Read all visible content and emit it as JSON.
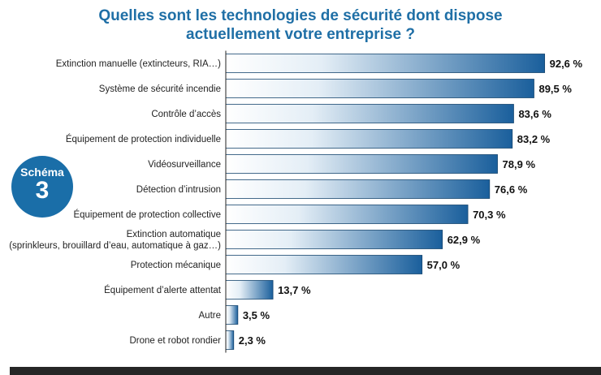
{
  "title": {
    "line1": "Quelles sont les technologies de sécurité dont dispose",
    "line2": "actuellement votre entreprise ?"
  },
  "badge": {
    "label": "Schéma",
    "number": "3"
  },
  "colors": {
    "title": "#1f6fa6",
    "badge": "#1a6ea8",
    "bar_dark": "#1a5f9c",
    "bar_light": "#ffffff",
    "footer": "#262626"
  },
  "chart_data": {
    "type": "bar",
    "orientation": "horizontal",
    "title": "Quelles sont les technologies de sécurité dont dispose actuellement votre entreprise ?",
    "unit": "%",
    "xlim": [
      0,
      100
    ],
    "categories": [
      [
        "Extinction manuelle (extincteurs, RIA…)"
      ],
      [
        "Système de sécurité incendie"
      ],
      [
        "Contrôle d’accès"
      ],
      [
        "Équipement de protection individuelle"
      ],
      [
        "Vidéosurveillance"
      ],
      [
        "Détection d’intrusion"
      ],
      [
        "Équipement de protection collective"
      ],
      [
        "Extinction automatique",
        "(sprinkleurs, brouillard d’eau, automatique à gaz…)"
      ],
      [
        "Protection mécanique"
      ],
      [
        "Équipement d’alerte attentat"
      ],
      [
        "Autre"
      ],
      [
        "Drone et robot rondier"
      ]
    ],
    "values": [
      92.6,
      89.5,
      83.6,
      83.2,
      78.9,
      76.6,
      70.3,
      62.9,
      57.0,
      13.7,
      3.5,
      2.3
    ],
    "value_labels": [
      "92,6 %",
      "89,5 %",
      "83,6 %",
      "83,2 %",
      "78,9 %",
      "76,6 %",
      "70,3 %",
      "62,9 %",
      "57,0 %",
      "13,7 %",
      "3,5 %",
      "2,3 %"
    ]
  }
}
